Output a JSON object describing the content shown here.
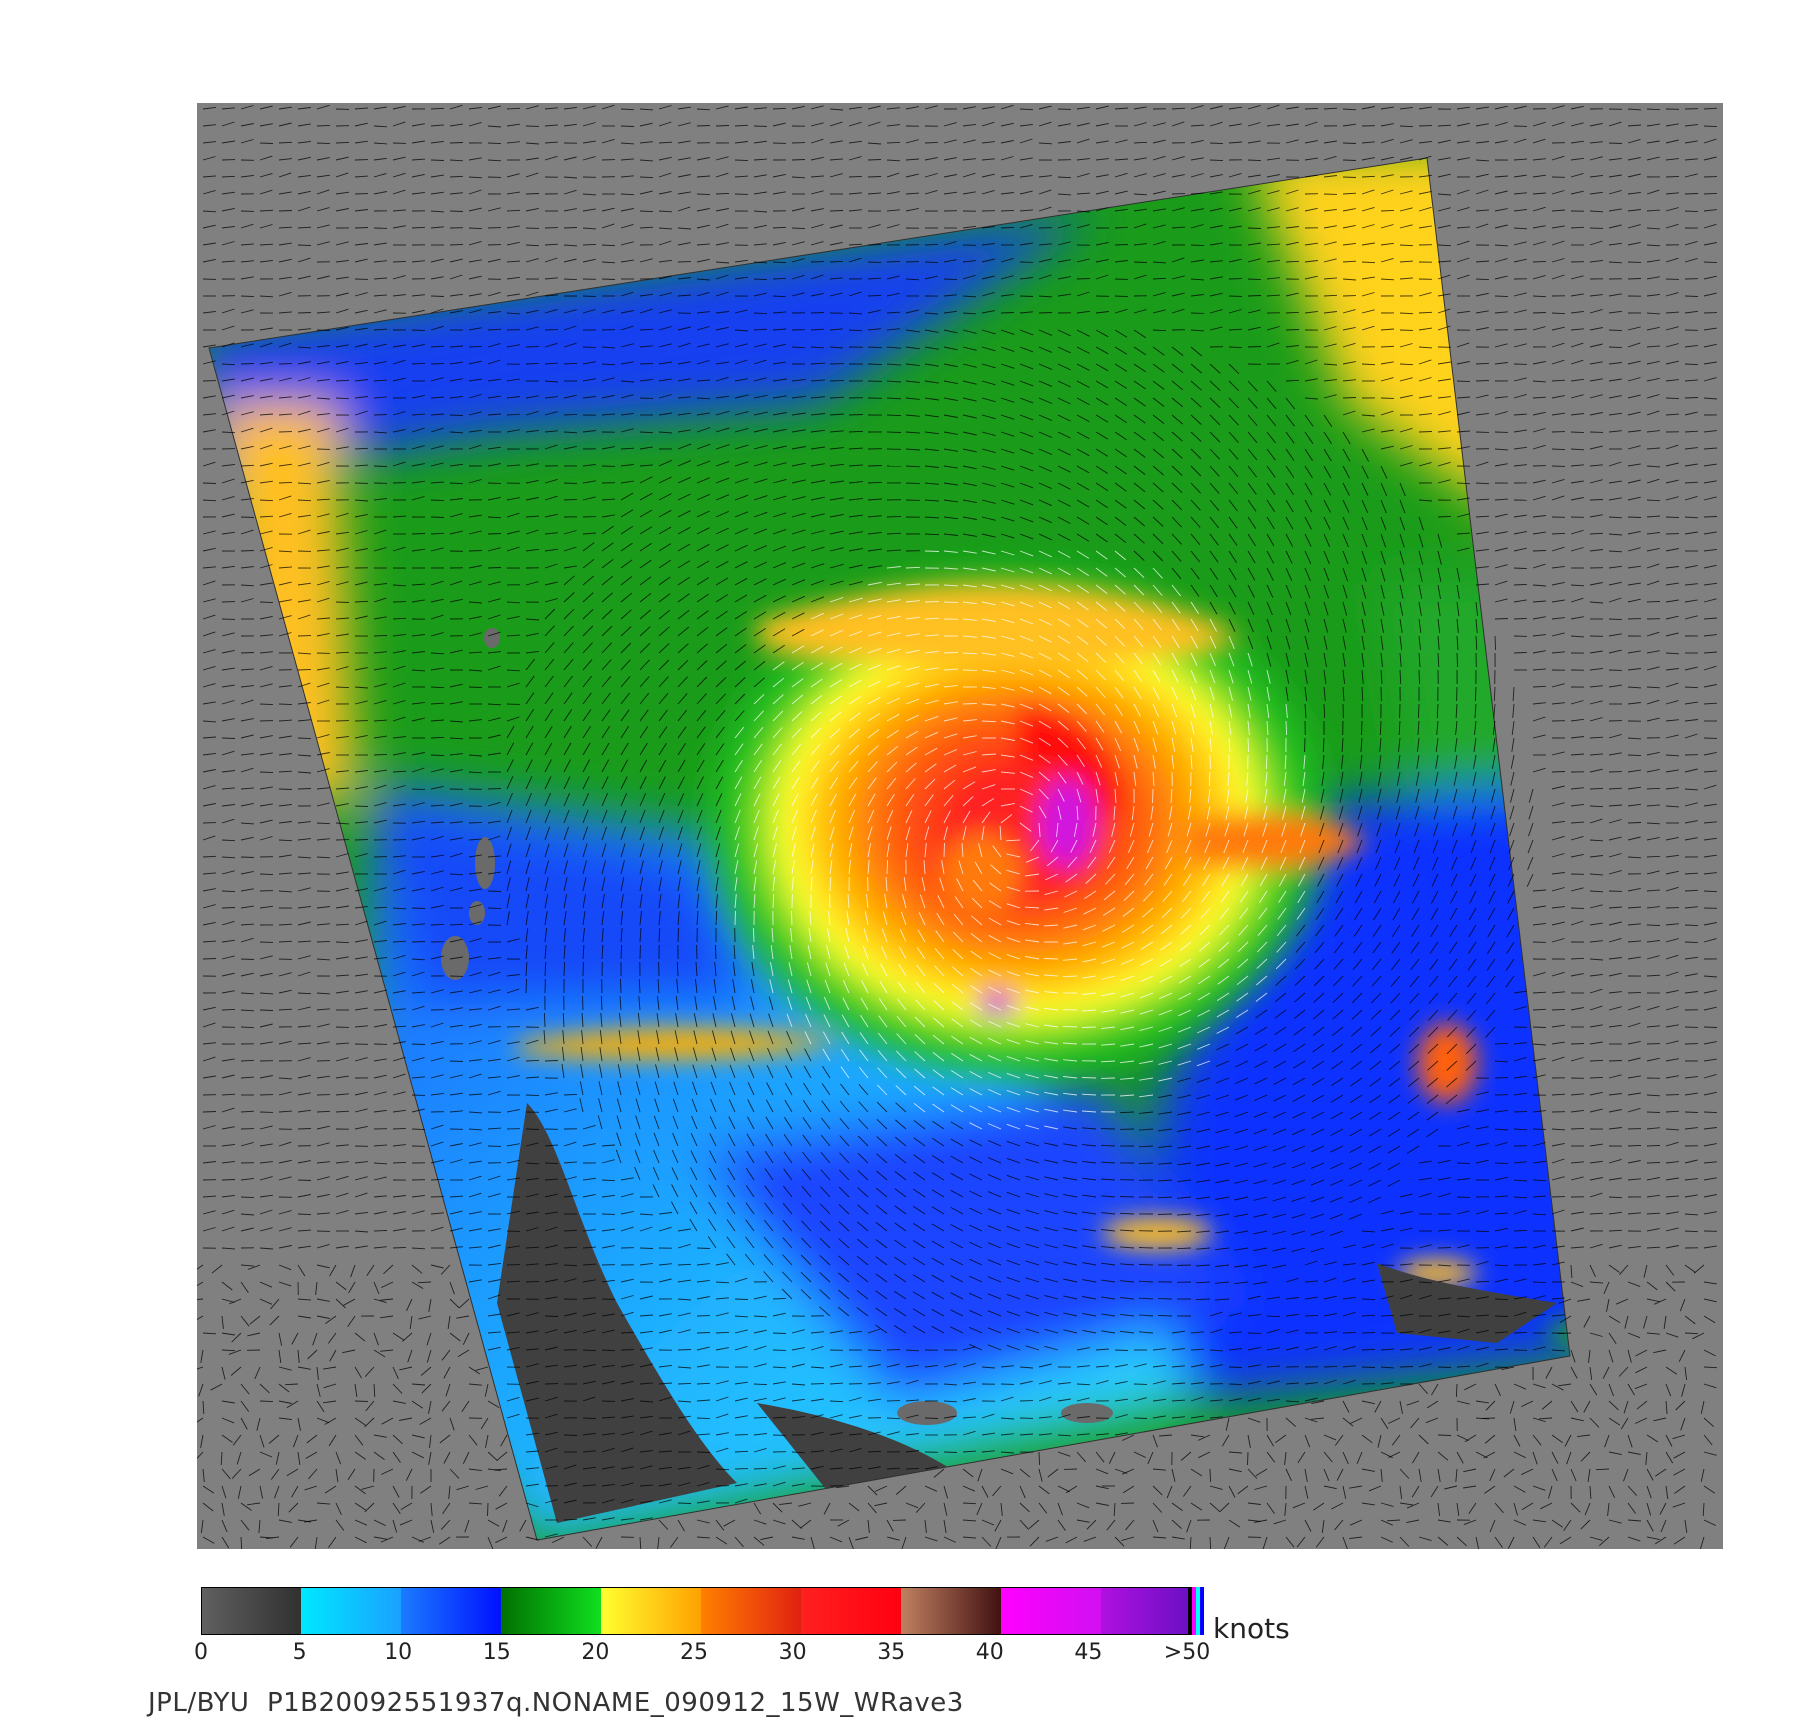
{
  "colorbar": {
    "units": "knots",
    "ticks": [
      "0",
      "5",
      "10",
      "15",
      "20",
      "25",
      "30",
      "35",
      "40",
      "45",
      ">50"
    ],
    "segments": [
      {
        "from": "#606060",
        "to": "#303030"
      },
      {
        "from": "#00e8ff",
        "to": "#1aa0ff"
      },
      {
        "from": "#1a7cff",
        "to": "#0010ff"
      },
      {
        "from": "#007000",
        "to": "#10e020"
      },
      {
        "from": "#ffff30",
        "to": "#ffa000"
      },
      {
        "from": "#ff8000",
        "to": "#e02010"
      },
      {
        "from": "#ff2020",
        "to": "#ff0010"
      },
      {
        "from": "#c08060",
        "to": "#401010"
      },
      {
        "from": "#ff00ff",
        "to": "#d010f0"
      },
      {
        "from": "#b010e0",
        "to": "#6010c0"
      }
    ],
    "overflow_colors": [
      "#000000",
      "#ff00ff",
      "#00ffff",
      "#0000ff"
    ]
  },
  "footer": {
    "text": "JPL/BYU  P1B20092551937q.NONAME_090912_15W_WRave3"
  },
  "map": {
    "background_color": "#808080",
    "land_color": "#5a5a5a",
    "vector_color_low": "#000000",
    "vector_color_high": "#ffffff"
  }
}
